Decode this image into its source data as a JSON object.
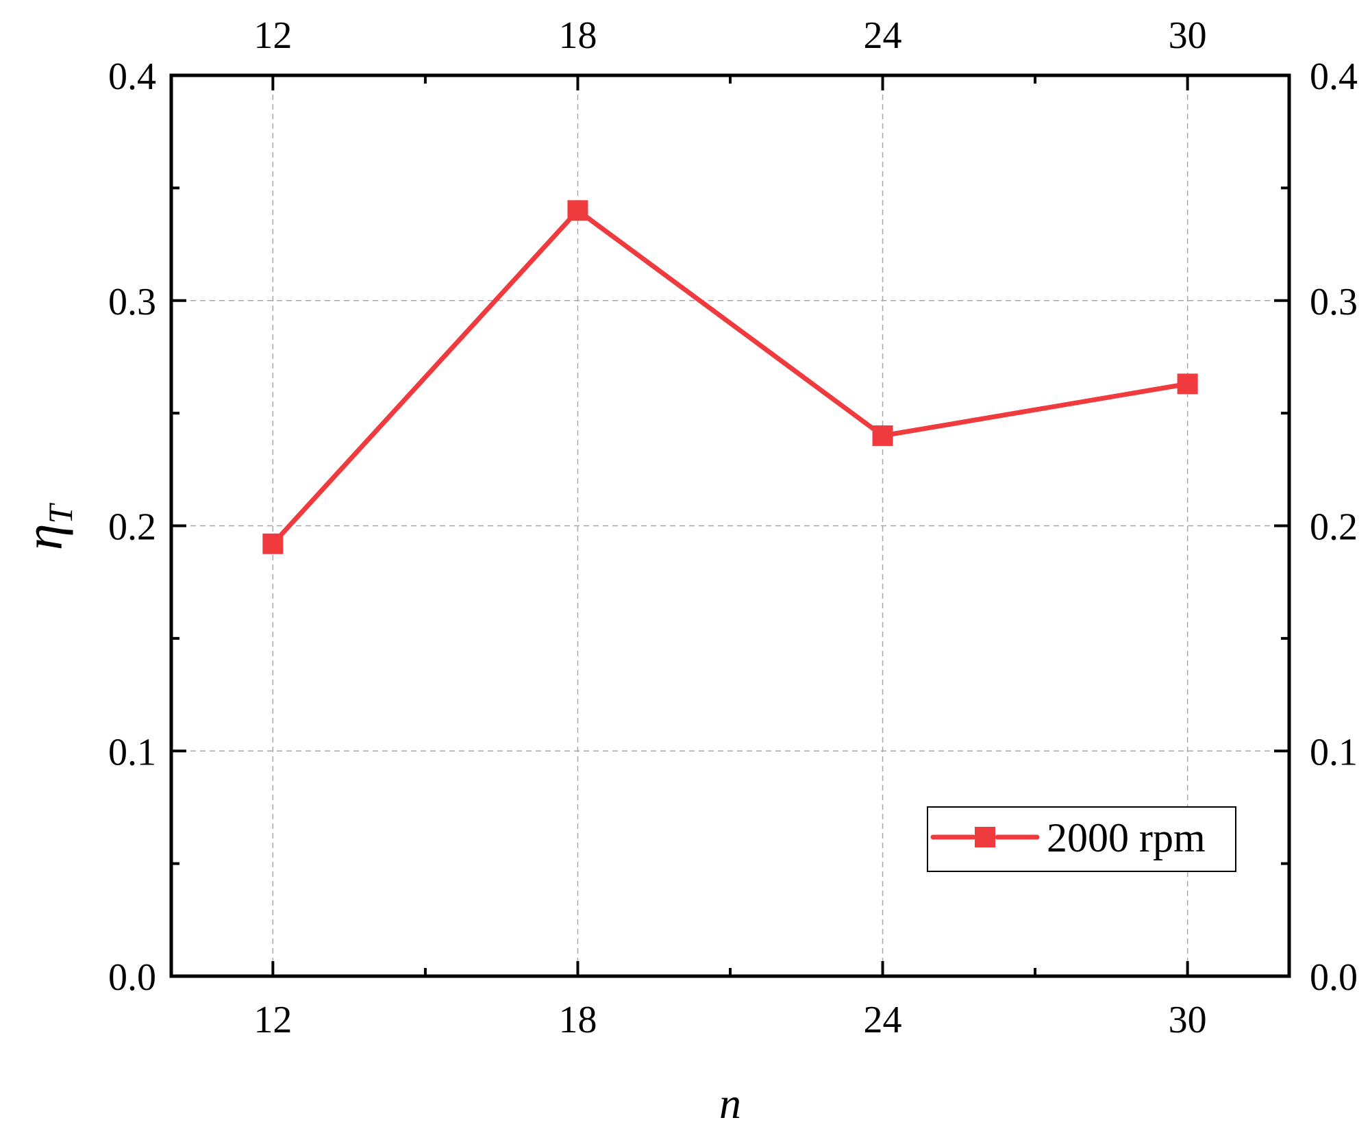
{
  "chart_data": {
    "type": "line",
    "title": "",
    "xlabel": "n",
    "ylabel": {
      "symbol": "η",
      "subscript": "T"
    },
    "x": [
      12,
      18,
      24,
      30
    ],
    "series": [
      {
        "name": "2000 rpm",
        "color": "#ef3b3e",
        "marker": "square",
        "values": [
          0.192,
          0.34,
          0.24,
          0.263
        ]
      }
    ],
    "xlim": [
      10,
      32
    ],
    "ylim": [
      0.0,
      0.4
    ],
    "xticks": [
      12,
      18,
      24,
      30
    ],
    "xtick_labels": [
      "12",
      "18",
      "24",
      "30"
    ],
    "xticks_minor": [
      15,
      21,
      27
    ],
    "yticks": [
      0.0,
      0.1,
      0.2,
      0.3,
      0.4
    ],
    "ytick_labels": [
      "0.0",
      "0.1",
      "0.2",
      "0.3",
      "0.4"
    ],
    "yticks_minor": [
      0.05,
      0.15,
      0.25,
      0.35
    ],
    "top_axis_labels": [
      "12",
      "18",
      "24",
      "30"
    ],
    "right_axis_labels": [
      "0.0",
      "0.1",
      "0.2",
      "0.3",
      "0.4"
    ],
    "grid": true,
    "legend_position": "bottom-right"
  }
}
